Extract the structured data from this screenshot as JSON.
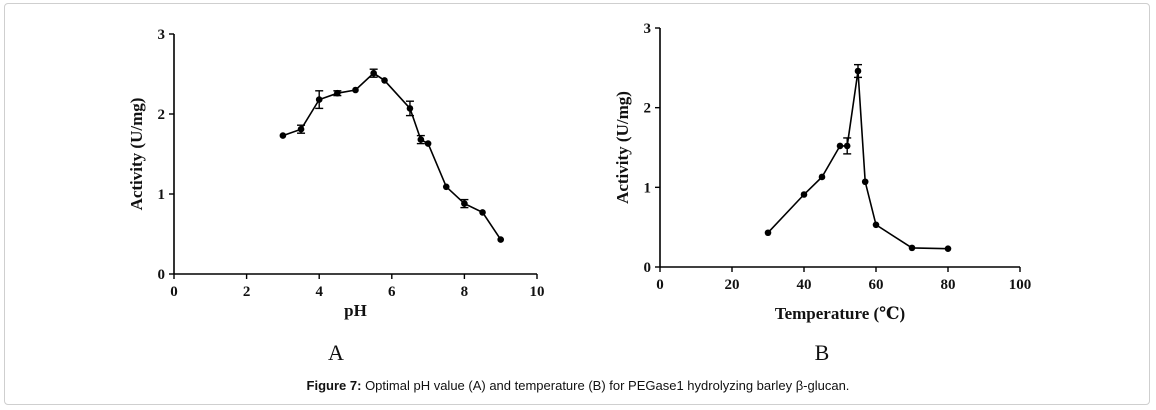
{
  "caption": {
    "label": "Figure 7:",
    "text": " Optimal pH value (A) and temperature (B) for PEGase1 hydrolyzing barley β-glucan."
  },
  "chart_data": [
    {
      "type": "line",
      "panel_label": "A",
      "xlabel": "pH",
      "ylabel": "Activity (U/mg)",
      "xlim": [
        0,
        10
      ],
      "ylim": [
        0,
        3
      ],
      "xticks": [
        0,
        2,
        4,
        6,
        8,
        10
      ],
      "yticks": [
        0,
        1,
        2,
        3
      ],
      "grid": false,
      "series": [
        {
          "x": [
            3,
            3.5,
            4,
            4.5,
            5,
            5.5,
            5.8,
            6.5,
            6.8,
            7,
            7.5,
            8,
            8.5,
            9
          ],
          "y": [
            1.73,
            1.81,
            2.18,
            2.26,
            2.3,
            2.51,
            2.42,
            2.07,
            1.68,
            1.63,
            1.09,
            0.88,
            0.77,
            0.43
          ],
          "error": [
            0,
            0.05,
            0.11,
            0.03,
            0,
            0.05,
            0,
            0.09,
            0.05,
            0,
            0,
            0.05,
            0,
            0
          ]
        }
      ]
    },
    {
      "type": "line",
      "panel_label": "B",
      "xlabel": "Temperature (℃)",
      "ylabel": "Activity (U/mg)",
      "xlim": [
        0,
        100
      ],
      "ylim": [
        0,
        3
      ],
      "xticks": [
        0,
        20,
        40,
        60,
        80,
        100
      ],
      "yticks": [
        0,
        1,
        2,
        3
      ],
      "grid": false,
      "series": [
        {
          "x": [
            30,
            40,
            45,
            50,
            52,
            55,
            57,
            60,
            70,
            80
          ],
          "y": [
            0.43,
            0.91,
            1.13,
            1.52,
            1.52,
            2.46,
            1.07,
            0.53,
            0.24,
            0.23
          ],
          "error": [
            0,
            0,
            0,
            0,
            0.1,
            0.08,
            0,
            0,
            0,
            0
          ]
        }
      ]
    }
  ]
}
